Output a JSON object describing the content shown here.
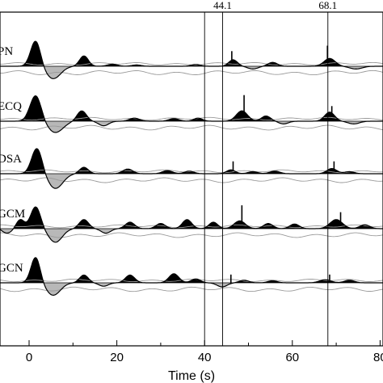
{
  "chart_data": {
    "type": "line",
    "title": "",
    "xlabel": "Time (s)",
    "ylabel": "",
    "xlim": [
      -11,
      82
    ],
    "x_ticks": [
      0,
      20,
      40,
      60,
      80
    ],
    "x_tick_labels": [
      "0",
      "20",
      "40",
      "60",
      "80"
    ],
    "grid": false,
    "vertical_lines": [
      {
        "x": 40.0,
        "label": ""
      },
      {
        "x": 44.1,
        "label": "44.1"
      },
      {
        "x": 68.1,
        "label": "68.1"
      }
    ],
    "stations": [
      {
        "name": "PN",
        "peaks": [
          {
            "t": 1.5,
            "a": 1.0,
            "w": 1.6
          },
          {
            "t": 5.5,
            "a": -0.55,
            "w": 2.4
          },
          {
            "t": 12.5,
            "a": 0.4,
            "w": 1.4
          },
          {
            "t": 19.0,
            "a": 0.08,
            "w": 1.6
          },
          {
            "t": 24.5,
            "a": 0.05,
            "w": 1.5
          },
          {
            "t": 38.0,
            "a": 0.07,
            "w": 1.5
          },
          {
            "t": 46.5,
            "a": 0.25,
            "w": 1.4
          },
          {
            "t": 51.0,
            "a": -0.12,
            "w": 1.6
          },
          {
            "t": 55.5,
            "a": 0.15,
            "w": 1.5
          },
          {
            "t": 68.5,
            "a": 0.3,
            "w": 1.8
          },
          {
            "t": 74.5,
            "a": -0.12,
            "w": 2.0
          }
        ],
        "spikes": [
          {
            "t": 46.2,
            "a": 0.55
          },
          {
            "t": 68.0,
            "a": 0.75
          }
        ]
      },
      {
        "name": "ECQ",
        "peaks": [
          {
            "t": 1.5,
            "a": 1.0,
            "w": 1.8
          },
          {
            "t": 6.0,
            "a": -0.5,
            "w": 2.5
          },
          {
            "t": 12.0,
            "a": 0.4,
            "w": 1.5
          },
          {
            "t": 17.0,
            "a": -0.2,
            "w": 1.6
          },
          {
            "t": 24.0,
            "a": 0.12,
            "w": 1.6
          },
          {
            "t": 33.0,
            "a": 0.1,
            "w": 1.6
          },
          {
            "t": 38.5,
            "a": 0.12,
            "w": 1.4
          },
          {
            "t": 48.5,
            "a": 0.4,
            "w": 1.8
          },
          {
            "t": 54.0,
            "a": 0.2,
            "w": 1.5
          },
          {
            "t": 58.0,
            "a": -0.12,
            "w": 1.5
          },
          {
            "t": 68.5,
            "a": 0.35,
            "w": 1.6
          },
          {
            "t": 74.0,
            "a": -0.12,
            "w": 1.8
          }
        ],
        "spikes": [
          {
            "t": 49.0,
            "a": 0.95
          },
          {
            "t": 69.0,
            "a": 0.55
          }
        ]
      },
      {
        "name": "DSA",
        "peaks": [
          {
            "t": 1.8,
            "a": 1.0,
            "w": 1.7
          },
          {
            "t": 6.0,
            "a": -0.65,
            "w": 2.4
          },
          {
            "t": 12.5,
            "a": 0.25,
            "w": 1.4
          },
          {
            "t": 22.5,
            "a": 0.18,
            "w": 1.6
          },
          {
            "t": 31.5,
            "a": 0.12,
            "w": 1.6
          },
          {
            "t": 36.5,
            "a": 0.1,
            "w": 1.5
          },
          {
            "t": 46.0,
            "a": 0.15,
            "w": 1.4
          },
          {
            "t": 51.0,
            "a": 0.08,
            "w": 1.5
          },
          {
            "t": 56.0,
            "a": 0.1,
            "w": 1.6
          },
          {
            "t": 69.0,
            "a": 0.2,
            "w": 1.6
          },
          {
            "t": 73.0,
            "a": 0.08,
            "w": 1.6
          }
        ],
        "spikes": [
          {
            "t": 46.5,
            "a": 0.45
          },
          {
            "t": 69.5,
            "a": 0.45
          }
        ]
      },
      {
        "name": "GCM",
        "peaks": [
          {
            "t": -8.5,
            "a": 0.2,
            "w": 1.4
          },
          {
            "t": -5.0,
            "a": -0.2,
            "w": 1.5
          },
          {
            "t": -2.0,
            "a": 0.35,
            "w": 1.3
          },
          {
            "t": 1.5,
            "a": 0.85,
            "w": 1.6
          },
          {
            "t": 6.0,
            "a": -0.6,
            "w": 2.2
          },
          {
            "t": 12.5,
            "a": 0.35,
            "w": 1.5
          },
          {
            "t": 17.5,
            "a": -0.2,
            "w": 1.5
          },
          {
            "t": 23.0,
            "a": 0.25,
            "w": 1.5
          },
          {
            "t": 30.0,
            "a": 0.2,
            "w": 1.5
          },
          {
            "t": 36.0,
            "a": 0.35,
            "w": 1.5
          },
          {
            "t": 42.0,
            "a": 0.25,
            "w": 1.4
          },
          {
            "t": 48.0,
            "a": 0.3,
            "w": 1.8
          },
          {
            "t": 54.5,
            "a": 0.2,
            "w": 1.5
          },
          {
            "t": 60.5,
            "a": 0.18,
            "w": 1.5
          },
          {
            "t": 70.0,
            "a": 0.35,
            "w": 2.0
          },
          {
            "t": 76.5,
            "a": 0.15,
            "w": 1.6
          }
        ],
        "spikes": [
          {
            "t": 48.5,
            "a": 0.85
          },
          {
            "t": 71.0,
            "a": 0.6
          }
        ]
      },
      {
        "name": "GCN",
        "peaks": [
          {
            "t": 1.5,
            "a": 1.0,
            "w": 1.5
          },
          {
            "t": 5.5,
            "a": -0.55,
            "w": 2.3
          },
          {
            "t": 12.5,
            "a": 0.3,
            "w": 1.4
          },
          {
            "t": 17.0,
            "a": -0.15,
            "w": 1.5
          },
          {
            "t": 23.0,
            "a": 0.3,
            "w": 1.5
          },
          {
            "t": 33.0,
            "a": 0.35,
            "w": 1.6
          },
          {
            "t": 38.0,
            "a": 0.15,
            "w": 1.5
          },
          {
            "t": 44.0,
            "a": -0.18,
            "w": 1.6
          },
          {
            "t": 49.0,
            "a": 0.1,
            "w": 1.5
          },
          {
            "t": 55.5,
            "a": 0.08,
            "w": 1.5
          },
          {
            "t": 67.5,
            "a": 0.12,
            "w": 1.8
          },
          {
            "t": 73.0,
            "a": 0.1,
            "w": 1.6
          }
        ],
        "spikes": [
          {
            "t": 46.0,
            "a": 0.3
          },
          {
            "t": 68.5,
            "a": 0.3
          }
        ]
      }
    ]
  }
}
